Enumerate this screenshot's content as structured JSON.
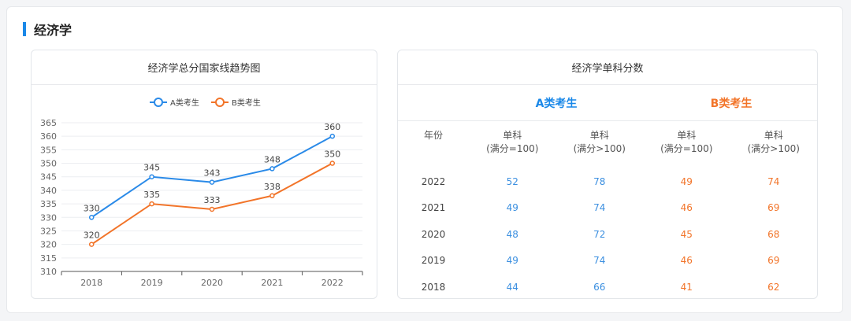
{
  "section": {
    "title": "经济学"
  },
  "left_card": {
    "title": "经济学总分国家线趋势图"
  },
  "right_card": {
    "title": "经济学单科分数",
    "groups": [
      "A类考生",
      "B类考生"
    ],
    "headers": [
      "年份",
      "单科\n(满分=100)",
      "单科\n(满分>100)",
      "单科\n(满分=100)",
      "单科\n(满分>100)"
    ],
    "rows": [
      [
        "2022",
        "52",
        "78",
        "49",
        "74"
      ],
      [
        "2021",
        "49",
        "74",
        "46",
        "69"
      ],
      [
        "2020",
        "48",
        "72",
        "45",
        "68"
      ],
      [
        "2019",
        "49",
        "74",
        "46",
        "69"
      ],
      [
        "2018",
        "44",
        "66",
        "41",
        "62"
      ]
    ]
  },
  "colors": {
    "accent": "#1a88e8",
    "series_a": "#2a8ae8",
    "series_b": "#f27429"
  },
  "chart_data": {
    "type": "line",
    "title": "",
    "xlabel": "",
    "ylabel": "",
    "categories": [
      "2018",
      "2019",
      "2020",
      "2021",
      "2022"
    ],
    "ylim": [
      310,
      365
    ],
    "yticks": [
      310,
      315,
      320,
      325,
      330,
      335,
      340,
      345,
      350,
      355,
      360,
      365
    ],
    "grid": true,
    "legend_position": "top-center",
    "data_labels": true,
    "series": [
      {
        "name": "A类考生",
        "values": [
          330,
          345,
          343,
          348,
          360
        ]
      },
      {
        "name": "B类考生",
        "values": [
          320,
          335,
          333,
          338,
          350
        ]
      }
    ]
  }
}
